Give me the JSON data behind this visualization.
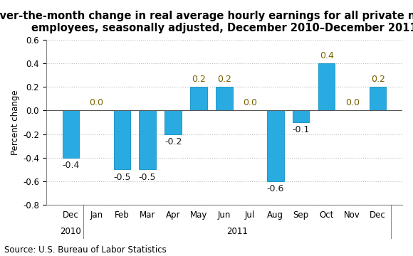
{
  "categories": [
    "Dec",
    "Jan",
    "Feb",
    "Mar",
    "Apr",
    "May",
    "Jun",
    "Jul",
    "Aug",
    "Sep",
    "Oct",
    "Nov",
    "Dec"
  ],
  "year_row1": [
    "2010",
    "",
    "",
    "",
    "",
    "",
    "",
    "",
    "",
    "",
    "",
    "",
    ""
  ],
  "year_row2": [
    "",
    "",
    "",
    "",
    "",
    "",
    "2011",
    "",
    "",
    "",
    "",
    "",
    ""
  ],
  "values": [
    -0.4,
    0.0,
    -0.5,
    -0.5,
    -0.2,
    0.2,
    0.2,
    0.0,
    -0.6,
    -0.1,
    0.4,
    0.0,
    0.2
  ],
  "bar_color": "#29ABE2",
  "bar_edge_color": "#0E8FC0",
  "title_line1": "Over-the-month change in real average hourly earnings for all private nonfarm",
  "title_line2": "employees, seasonally adjusted, December 2010–December 2011",
  "ylabel": "Percent change",
  "ylim": [
    -0.8,
    0.6
  ],
  "yticks": [
    -0.8,
    -0.6,
    -0.4,
    -0.2,
    0.0,
    0.2,
    0.4,
    0.6
  ],
  "source": "Source: U.S. Bureau of Labor Statistics",
  "title_fontsize": 10.5,
  "label_fontsize": 9,
  "tick_fontsize": 8.5,
  "source_fontsize": 8.5,
  "background_color": "#ffffff",
  "grid_color": "#bbbbbb",
  "pos_label_color": "#7B6000",
  "neg_label_color": "#1A1A1A"
}
